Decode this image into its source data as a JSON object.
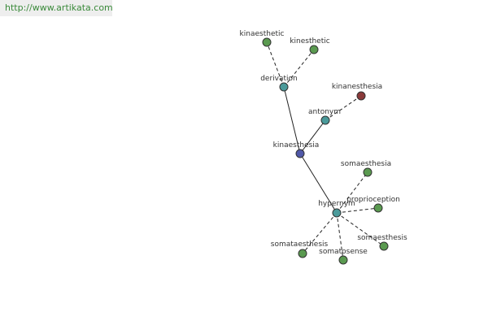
{
  "header": {
    "url": "http://www.artikata.com"
  },
  "nodes": [
    {
      "label": "kinaesthesia"
    },
    {
      "label": "derivation"
    },
    {
      "label": "antonym"
    },
    {
      "label": "hypernym"
    },
    {
      "label": "kinaesthetic"
    },
    {
      "label": "kinesthetic"
    },
    {
      "label": "kinanesthesia"
    },
    {
      "label": "somaesthesia"
    },
    {
      "label": "proprioception"
    },
    {
      "label": "somaesthesis"
    },
    {
      "label": "somatosense"
    },
    {
      "label": "somataesthesis"
    }
  ]
}
